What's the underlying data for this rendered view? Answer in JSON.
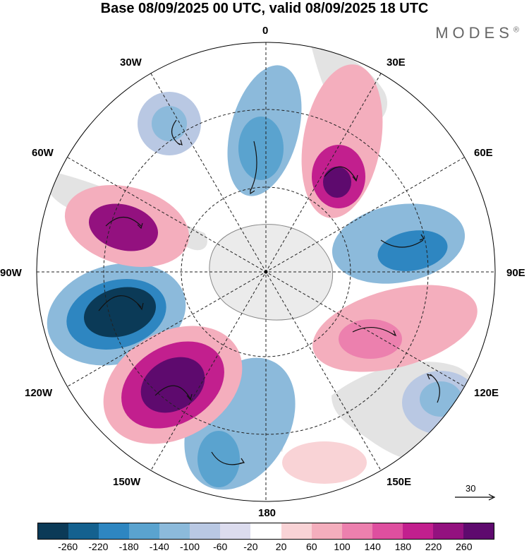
{
  "header": {
    "title": "Base 08/09/2025 00 UTC, valid 08/09/2025 18 UTC",
    "brand": "MODES",
    "brand_mark": "®"
  },
  "map": {
    "longitude_labels": {
      "lon_0": "0",
      "lon_30e": "30E",
      "lon_60e": "60E",
      "lon_90e": "90E",
      "lon_120e": "120E",
      "lon_150e": "150E",
      "lon_180": "180",
      "lon_150w": "150W",
      "lon_120w": "120W",
      "lon_90w": "90W",
      "lon_60w": "60W",
      "lon_30w": "30W"
    },
    "reference_vector_label": "30"
  },
  "colorbar": {
    "ticks": [
      "-260",
      "-220",
      "-180",
      "-140",
      "-100",
      "-60",
      "-20",
      "20",
      "60",
      "100",
      "140",
      "180",
      "220",
      "260"
    ],
    "colors": [
      "#0b3a57",
      "#14618f",
      "#2e86c1",
      "#5aa3cf",
      "#8cbadb",
      "#b9c8e3",
      "#dcdcee",
      "#ffffff",
      "#f9d3d6",
      "#f4aebd",
      "#ec80ae",
      "#de4f9f",
      "#c21f8e",
      "#93117f",
      "#5e0a6e"
    ]
  },
  "colors": {
    "continent": "#e3e3e3",
    "antarctica": "#ebebeb",
    "grid": "#222222"
  }
}
